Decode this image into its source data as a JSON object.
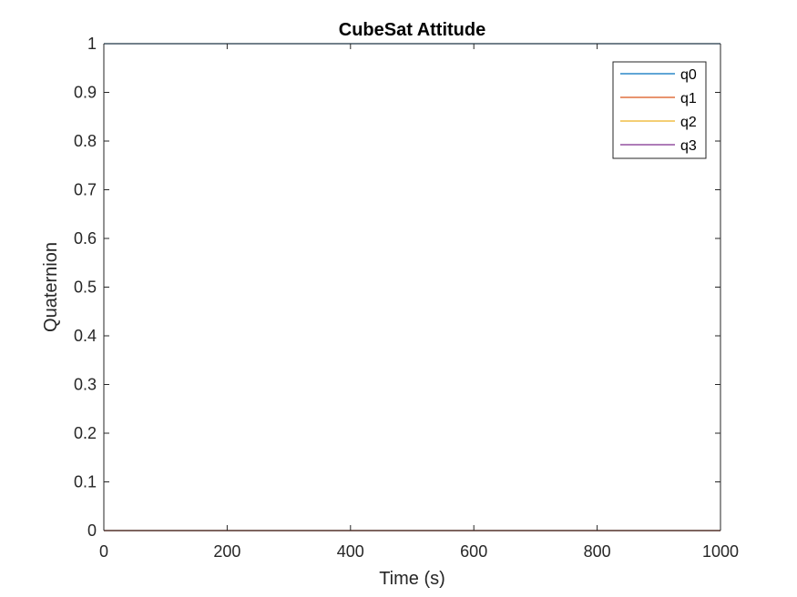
{
  "chart_data": {
    "type": "line",
    "title": "CubeSat Attitude",
    "xlabel": "Time (s)",
    "ylabel": "Quaternion",
    "xlim": [
      0,
      1000
    ],
    "ylim": [
      0,
      1
    ],
    "x_ticks": [
      0,
      200,
      400,
      600,
      800,
      1000
    ],
    "y_ticks": [
      0,
      0.1,
      0.2,
      0.3,
      0.4,
      0.5,
      0.6,
      0.7,
      0.8,
      0.9,
      1
    ],
    "grid": false,
    "legend_position": "top-right",
    "series": [
      {
        "name": "q0",
        "color": "#0072BD",
        "x": [
          0,
          1000
        ],
        "y": [
          1,
          1
        ]
      },
      {
        "name": "q1",
        "color": "#D95319",
        "x": [
          0,
          1000
        ],
        "y": [
          0,
          0
        ]
      },
      {
        "name": "q2",
        "color": "#EDB120",
        "x": [
          0,
          1000
        ],
        "y": [
          0,
          0
        ]
      },
      {
        "name": "q3",
        "color": "#7E2F8E",
        "x": [
          0,
          1000
        ],
        "y": [
          0,
          0
        ]
      }
    ]
  }
}
